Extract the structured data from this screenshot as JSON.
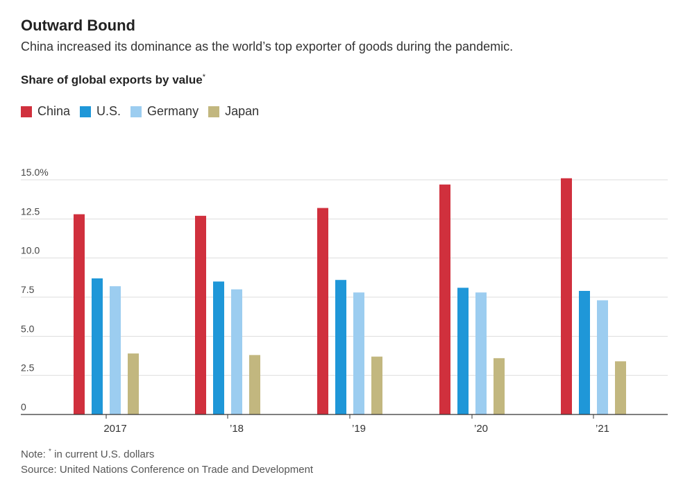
{
  "title": "Outward Bound",
  "subtitle": "China increased its dominance as the world’s top exporter of goods during the pandemic.",
  "measure_label": "Share of global exports by value",
  "measure_mark": "*",
  "note_prefix": "Note:",
  "note_mark": "*",
  "note_text": " in current U.S. dollars",
  "source": "Source: United Nations Conference on Trade and Development",
  "chart_data": {
    "type": "bar",
    "categories": [
      "2017",
      "’18",
      "’19",
      "’20",
      "’21"
    ],
    "series": [
      {
        "name": "China",
        "color": "#d0303d",
        "values": [
          12.8,
          12.7,
          13.2,
          14.7,
          15.1
        ]
      },
      {
        "name": "U.S.",
        "color": "#1f97d8",
        "values": [
          8.7,
          8.5,
          8.6,
          8.1,
          7.9
        ]
      },
      {
        "name": "Germany",
        "color": "#9ccdf0",
        "values": [
          8.2,
          8.0,
          7.8,
          7.8,
          7.3
        ]
      },
      {
        "name": "Japan",
        "color": "#c2b77f",
        "values": [
          3.9,
          3.8,
          3.7,
          3.6,
          3.4
        ]
      }
    ],
    "yticks": [
      0,
      2.5,
      5.0,
      7.5,
      10.0,
      12.5,
      15.0
    ],
    "ytick_labels": [
      "0",
      "2.5",
      "5.0",
      "7.5",
      "10.0",
      "12.5",
      "15.0%"
    ],
    "ylim": [
      0,
      15
    ],
    "xlabel": "",
    "ylabel": ""
  }
}
